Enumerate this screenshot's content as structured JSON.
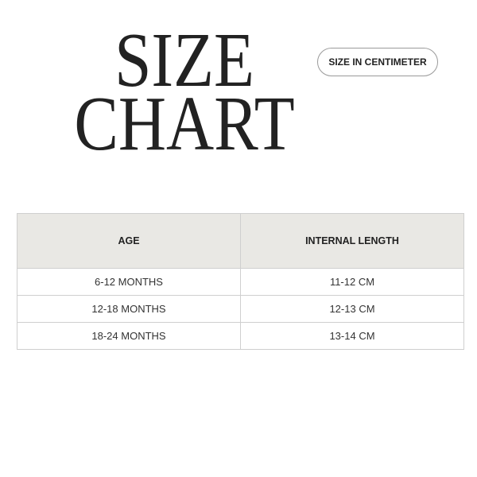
{
  "title": {
    "line1": "SIZE",
    "line2": "CHART"
  },
  "unit_badge": "SIZE IN CENTIMETER",
  "table": {
    "headers": [
      "AGE",
      "INTERNAL LENGTH"
    ],
    "rows": [
      [
        "6-12 MONTHS",
        "11-12 CM"
      ],
      [
        "12-18 MONTHS",
        "12-13 CM"
      ],
      [
        "18-24 MONTHS",
        "13-14 CM"
      ]
    ]
  },
  "colors": {
    "header_bg": "#e9e8e4",
    "text": "#222222",
    "border": "#cfcfcf"
  }
}
